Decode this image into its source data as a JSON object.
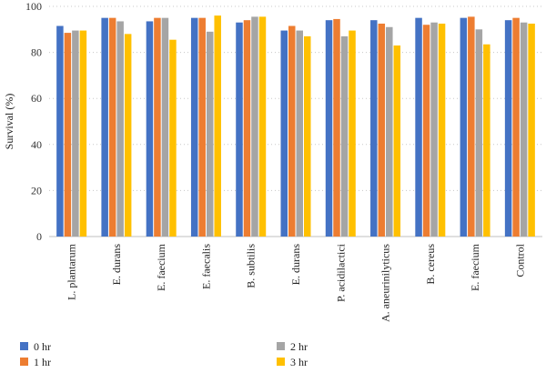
{
  "chart_data": {
    "type": "bar",
    "title": "",
    "xlabel": "",
    "ylabel": "Survival (%)",
    "ylim": [
      0,
      100
    ],
    "yticks": [
      0,
      20,
      40,
      60,
      80,
      100
    ],
    "grid": "horizontal dotted",
    "legend_position": "bottom",
    "categories": [
      "L. plantarum",
      "E. durans",
      "E. faecium",
      "E. faecalis",
      "B. subtilis",
      "E. durans",
      "P. acidilactici",
      "A. aneurinilyticus",
      "B. cereus",
      "E. faecium",
      "Control"
    ],
    "series": [
      {
        "name": "0 hr",
        "color": "#4472C4",
        "values": [
          91.5,
          95,
          93.5,
          95,
          93,
          89.5,
          94,
          94,
          95,
          95,
          94
        ]
      },
      {
        "name": "1 hr",
        "color": "#ED7D31",
        "values": [
          88.5,
          95,
          95,
          95,
          94,
          91.5,
          94.5,
          92.5,
          92,
          95.5,
          95
        ]
      },
      {
        "name": "2 hr",
        "color": "#A5A5A5",
        "values": [
          89.5,
          93.5,
          95,
          89,
          95.5,
          89.5,
          87,
          91,
          93,
          90,
          93
        ]
      },
      {
        "name": "3 hr",
        "color": "#FFC000",
        "values": [
          89.5,
          88,
          85.5,
          96,
          95.5,
          87,
          89.5,
          83,
          92.5,
          83.5,
          92.5
        ]
      }
    ]
  }
}
